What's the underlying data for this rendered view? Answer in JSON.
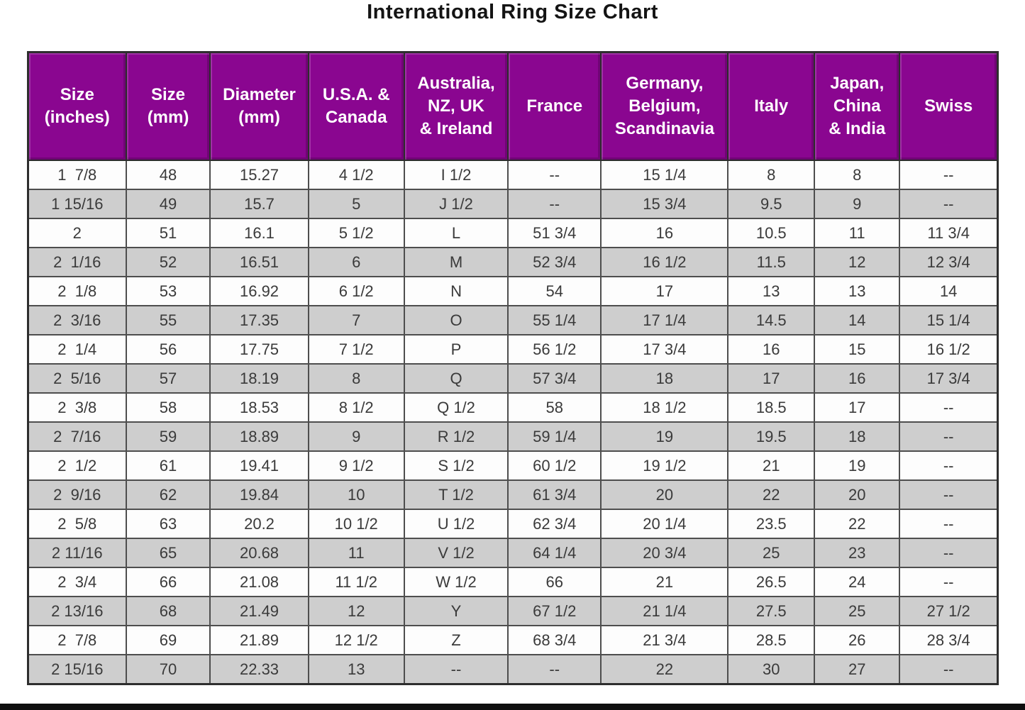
{
  "title": "International Ring Size Chart",
  "colors": {
    "header_bg": "#8a0690",
    "header_text": "#ffffff",
    "row_odd_bg": "#fdfdfd",
    "row_even_bg": "#cecece",
    "grid_border": "#4e4e4e",
    "data_text": "#3a3a3a",
    "title_text": "#141414",
    "bottom_bar": "#0f0f0f"
  },
  "chart_data": {
    "type": "table",
    "title": "International Ring Size Chart",
    "columns": [
      "Size\n(inches)",
      "Size\n(mm)",
      "Diameter\n(mm)",
      "U.S.A. &\nCanada",
      "Australia,\nNZ, UK\n& Ireland",
      "France",
      "Germany,\nBelgium,\nScandinavia",
      "Italy",
      "Japan,\nChina\n& India",
      "Swiss"
    ],
    "rows": [
      [
        "1  7/8",
        "48",
        "15.27",
        "4 1/2",
        "I 1/2",
        "--",
        "15 1/4",
        "8",
        "8",
        "--"
      ],
      [
        "1 15/16",
        "49",
        "15.7",
        "5",
        "J 1/2",
        "--",
        "15 3/4",
        "9.5",
        "9",
        "--"
      ],
      [
        "2",
        "51",
        "16.1",
        "5 1/2",
        "L",
        "51 3/4",
        "16",
        "10.5",
        "11",
        "11 3/4"
      ],
      [
        "2  1/16",
        "52",
        "16.51",
        "6",
        "M",
        "52 3/4",
        "16 1/2",
        "11.5",
        "12",
        "12 3/4"
      ],
      [
        "2  1/8",
        "53",
        "16.92",
        "6 1/2",
        "N",
        "54",
        "17",
        "13",
        "13",
        "14"
      ],
      [
        "2  3/16",
        "55",
        "17.35",
        "7",
        "O",
        "55 1/4",
        "17 1/4",
        "14.5",
        "14",
        "15 1/4"
      ],
      [
        "2  1/4",
        "56",
        "17.75",
        "7 1/2",
        "P",
        "56 1/2",
        "17 3/4",
        "16",
        "15",
        "16 1/2"
      ],
      [
        "2  5/16",
        "57",
        "18.19",
        "8",
        "Q",
        "57 3/4",
        "18",
        "17",
        "16",
        "17 3/4"
      ],
      [
        "2  3/8",
        "58",
        "18.53",
        "8 1/2",
        "Q 1/2",
        "58",
        "18 1/2",
        "18.5",
        "17",
        "--"
      ],
      [
        "2  7/16",
        "59",
        "18.89",
        "9",
        "R 1/2",
        "59 1/4",
        "19",
        "19.5",
        "18",
        "--"
      ],
      [
        "2  1/2",
        "61",
        "19.41",
        "9 1/2",
        "S 1/2",
        "60 1/2",
        "19 1/2",
        "21",
        "19",
        "--"
      ],
      [
        "2  9/16",
        "62",
        "19.84",
        "10",
        "T 1/2",
        "61 3/4",
        "20",
        "22",
        "20",
        "--"
      ],
      [
        "2  5/8",
        "63",
        "20.2",
        "10 1/2",
        "U 1/2",
        "62 3/4",
        "20 1/4",
        "23.5",
        "22",
        "--"
      ],
      [
        "2 11/16",
        "65",
        "20.68",
        "11",
        "V 1/2",
        "64 1/4",
        "20 3/4",
        "25",
        "23",
        "--"
      ],
      [
        "2  3/4",
        "66",
        "21.08",
        "11 1/2",
        "W 1/2",
        "66",
        "21",
        "26.5",
        "24",
        "--"
      ],
      [
        "2 13/16",
        "68",
        "21.49",
        "12",
        "Y",
        "67 1/2",
        "21 1/4",
        "27.5",
        "25",
        "27 1/2"
      ],
      [
        "2  7/8",
        "69",
        "21.89",
        "12 1/2",
        "Z",
        "68 3/4",
        "21 3/4",
        "28.5",
        "26",
        "28 3/4"
      ],
      [
        "2 15/16",
        "70",
        "22.33",
        "13",
        "--",
        "--",
        "22",
        "30",
        "27",
        "--"
      ]
    ],
    "layout": {
      "column_width_pct": [
        10.1,
        8.7,
        10.1,
        9.9,
        10.7,
        9.6,
        13.1,
        8.9,
        8.8,
        10.1
      ],
      "row_striping": "odd-white-even-gray",
      "header_position": "top"
    }
  }
}
